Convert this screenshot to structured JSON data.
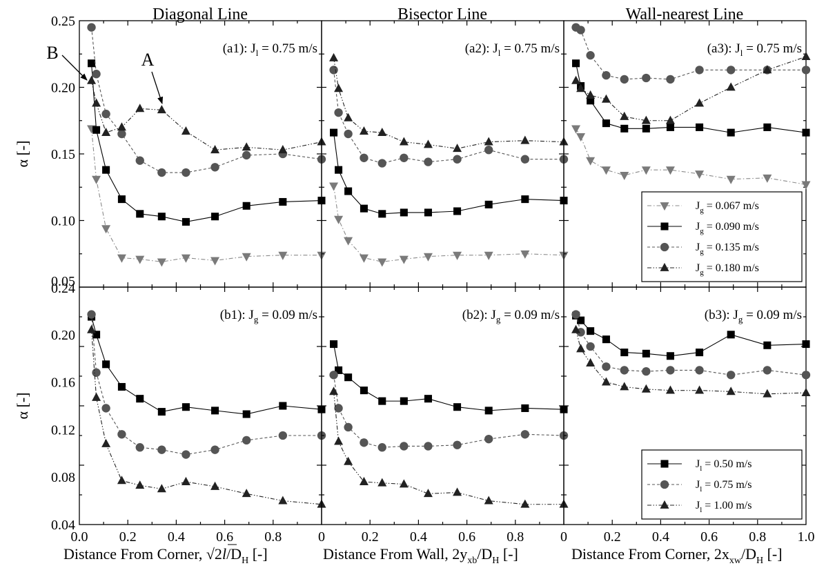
{
  "column_titles": [
    "Diagonal Line",
    "Bisector Line",
    "Wall-nearest Line"
  ],
  "xlabels": [
    {
      "main": "Distance From Corner, √2",
      "italic": "l",
      "rest": "/D",
      "sub": "H",
      "tail": " [-]"
    },
    {
      "main": "Distance From Wall, 2y",
      "sub1": "xb",
      "mid": "/D",
      "sub": "H",
      "tail": " [-]"
    },
    {
      "main": "Distance From Corner, 2x",
      "sub1": "xw",
      "mid": "/D",
      "sub": "H",
      "tail": " [-]"
    }
  ],
  "ylabel": "α [-]",
  "annotations": {
    "A": "A",
    "B": "B"
  },
  "chart_data": [
    {
      "type": "line",
      "id": "a1",
      "label": {
        "pre": "(a1): J",
        "sub": "l",
        "post": " = 0.75 m/s"
      },
      "xlim": [
        0,
        1.0
      ],
      "ylim": [
        0.05,
        0.25
      ],
      "yticks": [
        "0.05",
        "0.10",
        "0.15",
        "0.20",
        "0.25"
      ],
      "xticks": [
        "0.0",
        "0.2",
        "0.4",
        "0.6",
        "0.8",
        "0"
      ],
      "x": [
        0.05,
        0.07,
        0.11,
        0.175,
        0.25,
        0.34,
        0.44,
        0.56,
        0.69,
        0.84,
        1.0
      ],
      "series": [
        {
          "legend_pre": "J",
          "legend_sub": "g",
          "legend_post": " = 0.067 m/s",
          "marker": "tri-down",
          "dash": "dashdot",
          "values": [
            0.169,
            0.131,
            0.094,
            0.072,
            0.071,
            0.069,
            0.072,
            0.07,
            0.073,
            0.074,
            0.074
          ]
        },
        {
          "legend_pre": "J",
          "legend_sub": "g",
          "legend_post": " = 0.090 m/s",
          "marker": "square",
          "dash": "solid",
          "values": [
            0.218,
            0.168,
            0.138,
            0.116,
            0.105,
            0.103,
            0.099,
            0.103,
            0.111,
            0.114,
            0.115
          ]
        },
        {
          "legend_pre": "J",
          "legend_sub": "g",
          "legend_post": " = 0.135 m/s",
          "marker": "circle",
          "dash": "dashed",
          "values": [
            0.245,
            0.21,
            0.18,
            0.165,
            0.145,
            0.136,
            0.136,
            0.14,
            0.149,
            0.15,
            0.146
          ]
        },
        {
          "legend_pre": "J",
          "legend_sub": "g",
          "legend_post": " = 0.180 m/s",
          "marker": "tri-up",
          "dash": "dashdotdot",
          "values": [
            0.205,
            0.188,
            0.166,
            0.17,
            0.184,
            0.183,
            0.167,
            0.153,
            0.155,
            0.153,
            0.159
          ]
        }
      ]
    },
    {
      "type": "line",
      "id": "a2",
      "label": {
        "pre": "(a2): J",
        "sub": "l",
        "post": " = 0.75 m/s"
      },
      "xlim": [
        0,
        1.0
      ],
      "ylim": [
        0.05,
        0.25
      ],
      "xticks": [
        "0.2",
        "0.4",
        "0.6",
        "0.8",
        "0"
      ],
      "x": [
        0.05,
        0.07,
        0.11,
        0.175,
        0.25,
        0.34,
        0.44,
        0.56,
        0.69,
        0.84,
        1.0
      ],
      "series": [
        {
          "legend_pre": "J",
          "legend_sub": "g",
          "legend_post": " = 0.067 m/s",
          "marker": "tri-down",
          "dash": "dashdot",
          "values": [
            0.126,
            0.101,
            0.085,
            0.072,
            0.069,
            0.071,
            0.073,
            0.074,
            0.074,
            0.075,
            0.074
          ]
        },
        {
          "legend_pre": "J",
          "legend_sub": "g",
          "legend_post": " = 0.090 m/s",
          "marker": "square",
          "dash": "solid",
          "values": [
            0.166,
            0.138,
            0.122,
            0.109,
            0.105,
            0.106,
            0.106,
            0.107,
            0.112,
            0.116,
            0.115
          ]
        },
        {
          "legend_pre": "J",
          "legend_sub": "g",
          "legend_post": " = 0.135 m/s",
          "marker": "circle",
          "dash": "dashed",
          "values": [
            0.213,
            0.181,
            0.165,
            0.147,
            0.143,
            0.147,
            0.144,
            0.146,
            0.153,
            0.146,
            0.146
          ]
        },
        {
          "legend_pre": "J",
          "legend_sub": "g",
          "legend_post": " = 0.180 m/s",
          "marker": "tri-up",
          "dash": "dashdotdot",
          "values": [
            0.222,
            0.199,
            0.177,
            0.167,
            0.166,
            0.159,
            0.157,
            0.154,
            0.159,
            0.16,
            0.159
          ]
        }
      ]
    },
    {
      "type": "line",
      "id": "a3",
      "label": {
        "pre": "(a3): J",
        "sub": "l",
        "post": " = 0.75 m/s"
      },
      "xlim": [
        0,
        1.0
      ],
      "ylim": [
        0.05,
        0.25
      ],
      "xticks": [
        "0.2",
        "0.4",
        "0.6",
        "0.8",
        "1.0"
      ],
      "legend": "bottom-right",
      "x": [
        0.05,
        0.07,
        0.11,
        0.175,
        0.25,
        0.34,
        0.44,
        0.56,
        0.69,
        0.84,
        1.0
      ],
      "series": [
        {
          "legend_pre": "J",
          "legend_sub": "g",
          "legend_post": " = 0.067 m/s",
          "marker": "tri-down",
          "dash": "dashdot",
          "values": [
            0.169,
            0.163,
            0.145,
            0.138,
            0.134,
            0.138,
            0.138,
            0.135,
            0.131,
            0.132,
            0.127
          ]
        },
        {
          "legend_pre": "J",
          "legend_sub": "g",
          "legend_post": " = 0.090 m/s",
          "marker": "square",
          "dash": "solid",
          "values": [
            0.218,
            0.201,
            0.19,
            0.173,
            0.169,
            0.169,
            0.17,
            0.17,
            0.166,
            0.17,
            0.166
          ]
        },
        {
          "legend_pre": "J",
          "legend_sub": "g",
          "legend_post": " = 0.135 m/s",
          "marker": "circle",
          "dash": "dashed",
          "values": [
            0.245,
            0.243,
            0.224,
            0.209,
            0.206,
            0.207,
            0.206,
            0.213,
            0.213,
            0.213,
            0.213
          ]
        },
        {
          "legend_pre": "J",
          "legend_sub": "g",
          "legend_post": " = 0.180 m/s",
          "marker": "tri-up",
          "dash": "dashdotdot",
          "values": [
            0.205,
            0.199,
            0.194,
            0.191,
            0.178,
            0.175,
            0.175,
            0.188,
            0.2,
            0.213,
            0.223
          ]
        }
      ]
    },
    {
      "type": "line",
      "id": "b1",
      "label": {
        "pre": "(b1): J",
        "sub": "g",
        "post": " = 0.09 m/s"
      },
      "xlim": [
        0,
        1.0
      ],
      "ylim": [
        0.04,
        0.24
      ],
      "yticks": [
        "0.04",
        "0.08",
        "0.12",
        "0.16",
        "0.20",
        "0.24"
      ],
      "xticks": [
        "0.0",
        "0.2",
        "0.4",
        "0.6",
        "0.8",
        "0"
      ],
      "x": [
        0.05,
        0.07,
        0.11,
        0.175,
        0.25,
        0.34,
        0.44,
        0.56,
        0.69,
        0.84,
        1.0
      ],
      "series": [
        {
          "legend_pre": "J",
          "legend_sub": "l",
          "legend_post": " = 0.50 m/s",
          "marker": "square",
          "dash": "solid",
          "values": [
            0.215,
            0.2,
            0.175,
            0.156,
            0.146,
            0.135,
            0.139,
            0.136,
            0.133,
            0.14,
            0.137
          ]
        },
        {
          "legend_pre": "J",
          "legend_sub": "l",
          "legend_post": " = 0.75 m/s",
          "marker": "circle",
          "dash": "dashed",
          "values": [
            0.217,
            0.168,
            0.138,
            0.116,
            0.105,
            0.103,
            0.099,
            0.103,
            0.111,
            0.115,
            0.115
          ]
        },
        {
          "legend_pre": "J",
          "legend_sub": "l",
          "legend_post": " = 1.00 m/s",
          "marker": "tri-up",
          "dash": "dashdotdot",
          "values": [
            0.204,
            0.147,
            0.108,
            0.077,
            0.073,
            0.07,
            0.076,
            0.072,
            0.066,
            0.06,
            0.057
          ]
        }
      ]
    },
    {
      "type": "line",
      "id": "b2",
      "label": {
        "pre": "(b2): J",
        "sub": "g",
        "post": " = 0.09 m/s"
      },
      "xlim": [
        0,
        1.0
      ],
      "ylim": [
        0.04,
        0.24
      ],
      "xticks": [
        "0.2",
        "0.4",
        "0.6",
        "0.8",
        "0"
      ],
      "x": [
        0.05,
        0.07,
        0.11,
        0.175,
        0.25,
        0.34,
        0.44,
        0.56,
        0.69,
        0.84,
        1.0
      ],
      "series": [
        {
          "legend_pre": "J",
          "legend_sub": "l",
          "legend_post": " = 0.50 m/s",
          "marker": "square",
          "dash": "solid",
          "values": [
            0.192,
            0.17,
            0.164,
            0.153,
            0.144,
            0.144,
            0.146,
            0.139,
            0.136,
            0.138,
            0.137
          ]
        },
        {
          "legend_pre": "J",
          "legend_sub": "l",
          "legend_post": " = 0.75 m/s",
          "marker": "circle",
          "dash": "dashed",
          "values": [
            0.166,
            0.138,
            0.122,
            0.109,
            0.105,
            0.106,
            0.106,
            0.107,
            0.112,
            0.116,
            0.115
          ]
        },
        {
          "legend_pre": "J",
          "legend_sub": "l",
          "legend_post": " = 1.00 m/s",
          "marker": "tri-up",
          "dash": "dashdotdot",
          "values": [
            0.152,
            0.11,
            0.093,
            0.076,
            0.075,
            0.074,
            0.066,
            0.067,
            0.06,
            0.057,
            0.057
          ]
        }
      ]
    },
    {
      "type": "line",
      "id": "b3",
      "label": {
        "pre": "(b3): J",
        "sub": "g",
        "post": " = 0.09 m/s"
      },
      "xlim": [
        0,
        1.0
      ],
      "ylim": [
        0.04,
        0.24
      ],
      "xticks": [
        "0.2",
        "0.4",
        "0.6",
        "0.8",
        "1.0"
      ],
      "legend": "bottom-right",
      "x": [
        0.05,
        0.07,
        0.11,
        0.175,
        0.25,
        0.34,
        0.44,
        0.56,
        0.69,
        0.84,
        1.0
      ],
      "series": [
        {
          "legend_pre": "J",
          "legend_sub": "l",
          "legend_post": " = 0.50 m/s",
          "marker": "square",
          "dash": "solid",
          "values": [
            0.216,
            0.212,
            0.203,
            0.196,
            0.185,
            0.184,
            0.182,
            0.185,
            0.2,
            0.191,
            0.192
          ]
        },
        {
          "legend_pre": "J",
          "legend_sub": "l",
          "legend_post": " = 0.75 m/s",
          "marker": "circle",
          "dash": "dashed",
          "values": [
            0.217,
            0.202,
            0.19,
            0.173,
            0.17,
            0.169,
            0.17,
            0.17,
            0.166,
            0.17,
            0.166
          ]
        },
        {
          "legend_pre": "J",
          "legend_sub": "l",
          "legend_post": " = 1.00 m/s",
          "marker": "tri-up",
          "dash": "dashdotdot",
          "values": [
            0.204,
            0.188,
            0.176,
            0.16,
            0.156,
            0.154,
            0.153,
            0.153,
            0.152,
            0.15,
            0.151
          ]
        }
      ]
    }
  ]
}
